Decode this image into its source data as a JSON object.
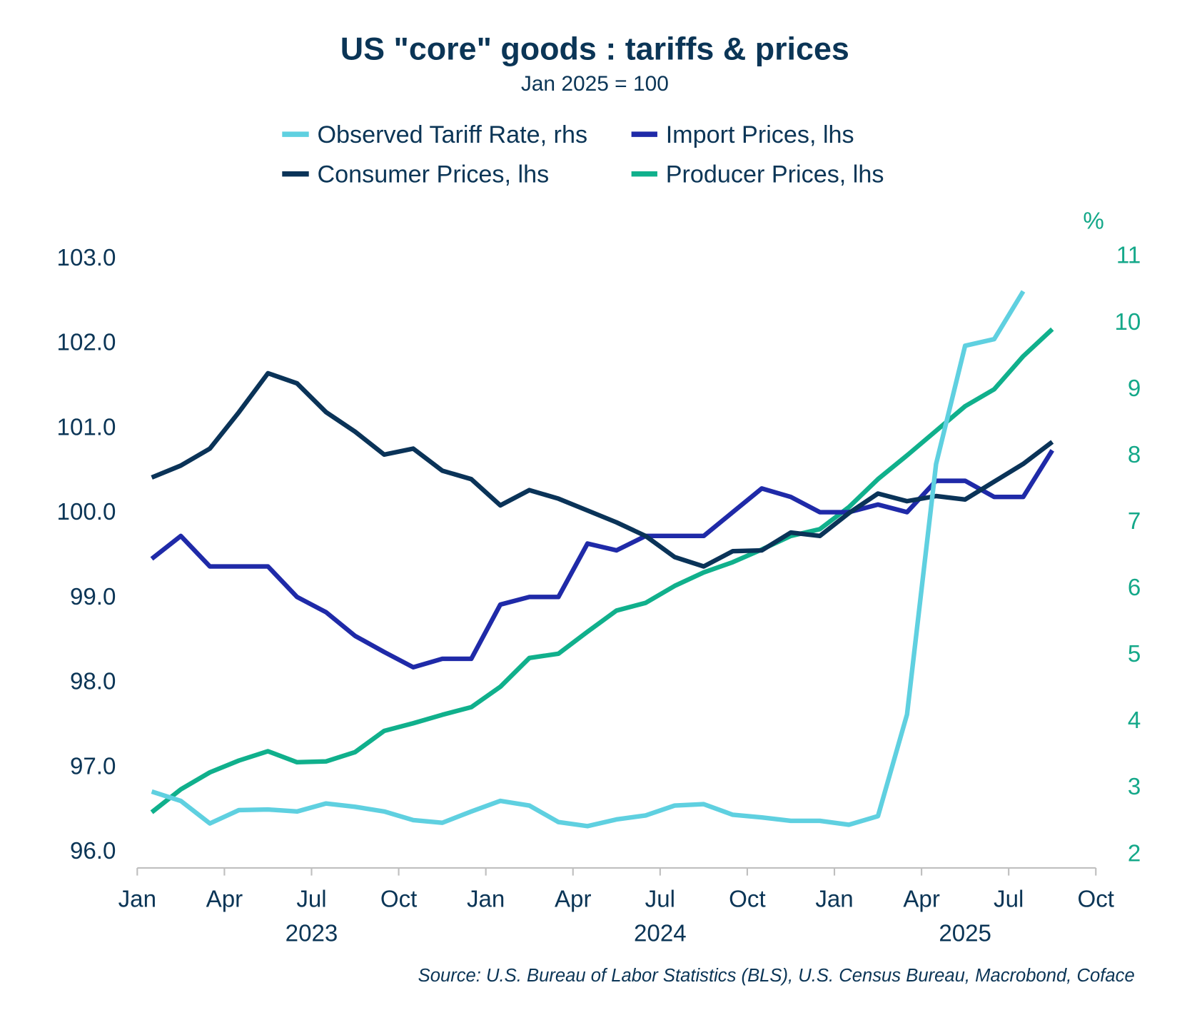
{
  "chart_data": {
    "type": "line",
    "title": "US \"core\" goods : tariffs & prices",
    "subtitle": "Jan 2025 = 100",
    "source": "Source: U.S. Bureau of Labor Statistics (BLS), U.S. Census Bureau, Macrobond, Coface",
    "legend_placement": "top",
    "grid": false,
    "left_axis": {
      "ylim": [
        96,
        103
      ],
      "ticks": [
        "96.0",
        "97.0",
        "98.0",
        "99.0",
        "100.0",
        "101.0",
        "102.0",
        "103.0"
      ]
    },
    "right_axis": {
      "unit": "%",
      "ylim": [
        2,
        11
      ],
      "ticks": [
        "2",
        "3",
        "4",
        "5",
        "6",
        "7",
        "8",
        "9",
        "10",
        "11"
      ],
      "color": "#14a889"
    },
    "x_axis": {
      "range": [
        "2023-01",
        "2025-10"
      ],
      "tick_labels": [
        "Jan",
        "Apr",
        "Jul",
        "Oct",
        "Jan",
        "Apr",
        "Jul",
        "Oct",
        "Jan",
        "Apr",
        "Jul",
        "Oct"
      ],
      "years": [
        "2023",
        "2024",
        "2025"
      ]
    },
    "x": [
      "2023-01",
      "2023-02",
      "2023-03",
      "2023-04",
      "2023-05",
      "2023-06",
      "2023-07",
      "2023-08",
      "2023-09",
      "2023-10",
      "2023-11",
      "2023-12",
      "2024-01",
      "2024-02",
      "2024-03",
      "2024-04",
      "2024-05",
      "2024-06",
      "2024-07",
      "2024-08",
      "2024-09",
      "2024-10",
      "2024-11",
      "2024-12",
      "2025-01",
      "2025-02",
      "2025-03",
      "2025-04",
      "2025-05",
      "2025-06",
      "2025-07",
      "2025-08"
    ],
    "series": [
      {
        "name": "Observed Tariff Rate, rhs",
        "axis": "right",
        "color": "#5fd0e0",
        "values": [
          2.92,
          2.78,
          2.44,
          2.64,
          2.65,
          2.62,
          2.74,
          2.69,
          2.62,
          2.49,
          2.45,
          2.62,
          2.78,
          2.71,
          2.46,
          2.4,
          2.5,
          2.56,
          2.71,
          2.73,
          2.57,
          2.53,
          2.48,
          2.48,
          2.42,
          2.55,
          4.08,
          7.85,
          9.63,
          9.73,
          10.45,
          null
        ]
      },
      {
        "name": "Import Prices, lhs",
        "axis": "left",
        "color": "#1f2aa8",
        "values": [
          99.44,
          99.71,
          99.35,
          99.35,
          99.35,
          98.99,
          98.81,
          98.53,
          98.34,
          98.16,
          98.26,
          98.26,
          98.9,
          98.99,
          98.99,
          99.62,
          99.54,
          99.71,
          99.71,
          99.71,
          99.99,
          100.27,
          100.17,
          99.99,
          99.99,
          100.08,
          99.99,
          100.36,
          100.36,
          100.17,
          100.17,
          100.72
        ]
      },
      {
        "name": "Consumer Prices, lhs",
        "axis": "left",
        "color": "#0a3358",
        "values": [
          100.4,
          100.54,
          100.74,
          101.17,
          101.63,
          101.51,
          101.17,
          100.94,
          100.67,
          100.74,
          100.48,
          100.38,
          100.07,
          100.25,
          100.15,
          100.01,
          99.87,
          99.71,
          99.46,
          99.35,
          99.53,
          99.54,
          99.75,
          99.71,
          99.98,
          100.21,
          100.12,
          100.18,
          100.14,
          100.35,
          100.56,
          100.82
        ]
      },
      {
        "name": "Producer Prices, lhs",
        "axis": "left",
        "color": "#10b08c",
        "values": [
          96.45,
          96.72,
          96.92,
          97.06,
          97.17,
          97.04,
          97.05,
          97.16,
          97.41,
          97.5,
          97.6,
          97.69,
          97.93,
          98.27,
          98.32,
          98.58,
          98.83,
          98.92,
          99.12,
          99.28,
          99.4,
          99.55,
          99.71,
          99.79,
          100.05,
          100.38,
          100.66,
          100.95,
          101.24,
          101.44,
          101.83,
          102.15
        ]
      }
    ]
  }
}
